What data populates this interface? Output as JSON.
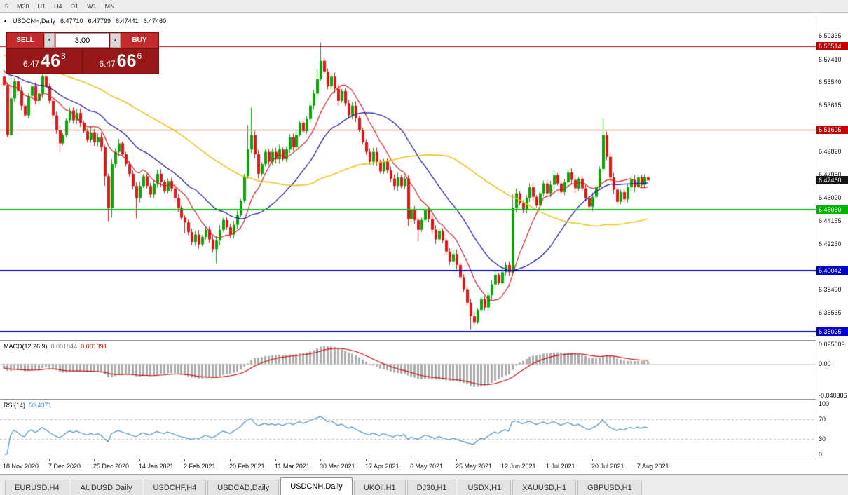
{
  "toolbar": {
    "timeframes": [
      "5",
      "M30",
      "H1",
      "H4",
      "D1",
      "W1",
      "MN"
    ]
  },
  "symbol_info": {
    "name": "USDCNH,Daily",
    "open": "6.47710",
    "high": "6.47799",
    "low": "6.47441",
    "close": "6.47460"
  },
  "trade_panel": {
    "sell_label": "SELL",
    "buy_label": "BUY",
    "volume": "3.00",
    "spinner_down": "▼",
    "spinner_up": "▲",
    "sell_price_prefix": "6.47",
    "sell_price_big": "46",
    "sell_price_sup": "3",
    "buy_price_prefix": "6.47",
    "buy_price_big": "66",
    "buy_price_sup": "6"
  },
  "indicator_labels": {
    "macd_name": "MACD(12,26,9)",
    "macd_main": "0.001844",
    "macd_signal": "0.001391",
    "rsi_name": "RSI(14)",
    "rsi_value": "50.4371"
  },
  "price_axis": {
    "ticks": [
      {
        "text": "6.59335",
        "value": 6.59335
      },
      {
        "text": "6.57410",
        "value": 6.5741
      },
      {
        "text": "6.55540",
        "value": 6.5554
      },
      {
        "text": "6.53615",
        "value": 6.53615
      },
      {
        "text": "6.49820",
        "value": 6.4982
      },
      {
        "text": "6.47950",
        "value": 6.4795
      },
      {
        "text": "6.46020",
        "value": 6.4602
      },
      {
        "text": "6.44155",
        "value": 6.44155
      },
      {
        "text": "6.42230",
        "value": 6.4223
      },
      {
        "text": "6.38490",
        "value": 6.3849
      },
      {
        "text": "6.36565",
        "value": 6.36565
      }
    ],
    "badges": [
      {
        "text": "6.58514",
        "value": 6.58514,
        "color": "#c40000"
      },
      {
        "text": "6.51605",
        "value": 6.51605,
        "color": "#c40000"
      },
      {
        "text": "6.47460",
        "value": 6.4746,
        "color": "#141414"
      },
      {
        "text": "6.45060",
        "value": 6.4506,
        "color": "#00b400"
      },
      {
        "text": "6.40042",
        "value": 6.40042,
        "color": "#0000cc"
      },
      {
        "text": "6.35025",
        "value": 6.35025,
        "color": "#0000cc"
      }
    ]
  },
  "date_axis": {
    "labels": [
      {
        "text": "18 Nov 2020",
        "idx": 0
      },
      {
        "text": "7 Dec 2020",
        "idx": 13
      },
      {
        "text": "25 Dec 2020",
        "idx": 26
      },
      {
        "text": "14 Jan 2021",
        "idx": 39
      },
      {
        "text": "2 Feb 2021",
        "idx": 52
      },
      {
        "text": "20 Feb 2021",
        "idx": 65
      },
      {
        "text": "11 Mar 2021",
        "idx": 78
      },
      {
        "text": "30 Mar 2021",
        "idx": 91
      },
      {
        "text": "17 Apr 2021",
        "idx": 104
      },
      {
        "text": "6 May 2021",
        "idx": 117
      },
      {
        "text": "25 May 2021",
        "idx": 130
      },
      {
        "text": "12 Jun 2021",
        "idx": 143
      },
      {
        "text": "1 Jul 2021",
        "idx": 156
      },
      {
        "text": "20 Jul 2021",
        "idx": 169
      },
      {
        "text": "7 Aug 2021",
        "idx": 182
      }
    ]
  },
  "tab_bar": {
    "tabs": [
      {
        "label": "EURUSD,H4",
        "active": false
      },
      {
        "label": "AUDUSD,Daily",
        "active": false
      },
      {
        "label": "USDCHF,H4",
        "active": false
      },
      {
        "label": "USDCAD,Daily",
        "active": false
      },
      {
        "label": "USDCNH,Daily",
        "active": true
      },
      {
        "label": "UKOil,H1",
        "active": false
      },
      {
        "label": "DJ30,H1",
        "active": false
      },
      {
        "label": "USDX,H1",
        "active": false
      },
      {
        "label": "XAUUSD,H1",
        "active": false
      },
      {
        "label": "GBPUSD,H1",
        "active": false
      }
    ]
  },
  "chart_data": {
    "type": "candlestick",
    "title": "USDCNH,Daily",
    "ylim": [
      6.345,
      6.6085
    ],
    "x_start": 5,
    "bar_spacing": 4.97,
    "first_open": 6.56,
    "default_wick": 0.0025,
    "up_color": "#0ca30c",
    "down_color": "#dd1616",
    "closes": [
      6.553,
      6.512,
      6.542,
      6.556,
      6.548,
      6.536,
      6.528,
      6.544,
      6.552,
      6.54,
      6.546,
      6.56,
      6.552,
      6.54,
      6.528,
      6.516,
      6.505,
      6.512,
      6.524,
      6.532,
      6.524,
      6.53,
      6.522,
      6.515,
      6.508,
      6.514,
      6.506,
      6.51,
      6.502,
      6.478,
      6.452,
      6.488,
      6.498,
      6.505,
      6.496,
      6.488,
      6.48,
      6.47,
      6.46,
      6.47,
      6.478,
      6.47,
      6.463,
      6.472,
      6.48,
      6.473,
      6.466,
      6.474,
      6.468,
      6.46,
      6.452,
      6.444,
      6.44,
      6.432,
      6.424,
      6.43,
      6.422,
      6.428,
      6.434,
      6.426,
      6.418,
      6.425,
      6.434,
      6.442,
      6.436,
      6.43,
      6.438,
      6.446,
      6.458,
      6.478,
      6.5,
      6.512,
      6.496,
      6.48,
      6.488,
      6.498,
      6.49,
      6.498,
      6.492,
      6.5,
      6.492,
      6.5,
      6.51,
      6.502,
      6.512,
      6.522,
      6.515,
      6.525,
      6.536,
      6.546,
      6.558,
      6.573,
      6.564,
      6.552,
      6.56,
      6.55,
      6.54,
      6.548,
      6.538,
      6.528,
      6.536,
      6.526,
      6.516,
      6.506,
      6.498,
      6.49,
      6.498,
      6.49,
      6.482,
      6.49,
      6.483,
      6.476,
      6.47,
      6.477,
      6.47,
      6.476,
      6.443,
      6.45,
      6.442,
      6.434,
      6.442,
      6.45,
      6.443,
      6.434,
      6.426,
      6.433,
      6.425,
      6.416,
      6.408,
      6.414,
      6.405,
      6.395,
      6.385,
      6.374,
      6.363,
      6.358,
      6.368,
      6.377,
      6.37,
      6.38,
      6.389,
      6.397,
      6.39,
      6.399,
      6.405,
      6.399,
      6.452,
      6.464,
      6.456,
      6.45,
      6.46,
      6.469,
      6.461,
      6.454,
      6.464,
      6.472,
      6.464,
      6.471,
      6.479,
      6.472,
      6.465,
      6.473,
      6.481,
      6.475,
      6.468,
      6.476,
      6.468,
      6.46,
      6.453,
      6.461,
      6.469,
      6.484,
      6.512,
      6.494,
      6.477,
      6.467,
      6.457,
      6.465,
      6.459,
      6.469,
      6.475,
      6.469,
      6.477,
      6.471,
      6.4771,
      6.4746
    ],
    "wick_overrides": {
      "0": {
        "h": 6.566
      },
      "2": {
        "h": 6.575
      },
      "11": {
        "h": 6.567
      },
      "16": {
        "l": 6.498
      },
      "25": {
        "h": 6.519
      },
      "29": {
        "l": 6.47
      },
      "30": {
        "l": 6.441
      },
      "31": {
        "h": 6.492,
        "l": 6.444
      },
      "38": {
        "l": 6.4435
      },
      "52": {
        "l": 6.431
      },
      "61": {
        "l": 6.4065
      },
      "70": {
        "h": 6.52
      },
      "71": {
        "h": 6.5345
      },
      "90": {
        "h": 6.566
      },
      "91": {
        "h": 6.588
      },
      "116": {
        "l": 6.437
      },
      "119": {
        "l": 6.4245
      },
      "134": {
        "l": 6.352
      },
      "146": {
        "h": 6.463,
        "l": 6.396
      },
      "172": {
        "h": 6.526
      },
      "185": {
        "h": 6.47799,
        "l": 6.47441
      }
    },
    "moving_averages": [
      {
        "period": 10,
        "color": "#d02020",
        "width": 1.2
      },
      {
        "period": 25,
        "color": "#10109e",
        "width": 1.2
      },
      {
        "period": 60,
        "color": "#edc31d",
        "width": 1.6
      }
    ],
    "hlines": [
      {
        "price": 6.58514,
        "color": "#c40000",
        "width": 1
      },
      {
        "price": 6.51605,
        "color": "#c40000",
        "width": 1
      },
      {
        "price": 6.4506,
        "color": "#00ca00",
        "width": 2
      },
      {
        "price": 6.40042,
        "color": "#0000cc",
        "width": 2
      },
      {
        "price": 6.35025,
        "color": "#0000cc",
        "width": 2
      }
    ],
    "macd": {
      "type": "macd",
      "params": [
        12,
        26,
        9
      ],
      "ylim": [
        -0.040386,
        0.025609
      ],
      "axis": [
        {
          "text": "0.025609",
          "value": 0.025609
        },
        {
          "text": "0.00",
          "value": 0
        },
        {
          "text": "-0.040386",
          "value": -0.040386
        }
      ],
      "histogram_color": "#ababab",
      "signal_color": "#cc0000"
    },
    "rsi": {
      "type": "rsi",
      "period": 14,
      "ylim": [
        0,
        100
      ],
      "axis": [
        {
          "text": "100",
          "value": 100
        },
        {
          "text": "70",
          "value": 70
        },
        {
          "text": "30",
          "value": 30
        },
        {
          "text": "0",
          "value": 0
        }
      ],
      "levels": [
        70,
        30
      ],
      "line_color": "#4a8fc0"
    }
  }
}
